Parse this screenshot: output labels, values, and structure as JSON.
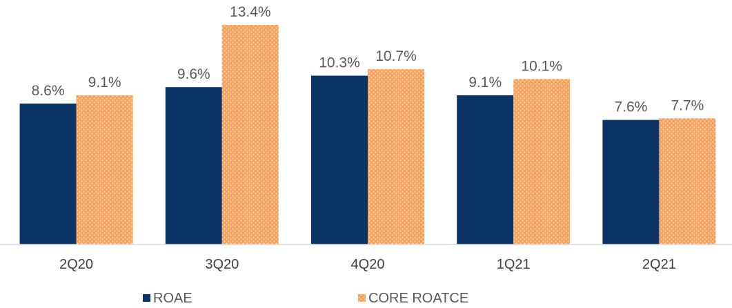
{
  "chart_data": {
    "type": "bar",
    "categories": [
      "2Q20",
      "3Q20",
      "4Q20",
      "1Q21",
      "2Q21"
    ],
    "series": [
      {
        "name": "ROAE",
        "values": [
          8.6,
          9.6,
          10.3,
          9.1,
          7.6
        ],
        "labels": [
          "8.6%",
          "9.6%",
          "10.3%",
          "9.1%",
          "7.6%"
        ],
        "color": "#0b3467",
        "pattern": "solid"
      },
      {
        "name": "CORE ROATCE",
        "values": [
          9.1,
          13.4,
          10.7,
          10.1,
          7.7
        ],
        "labels": [
          "9.1%",
          "13.4%",
          "10.7%",
          "10.1%",
          "7.7%"
        ],
        "color": "#f5a25d",
        "pattern": "dotted"
      }
    ],
    "title": "",
    "xlabel": "",
    "ylabel": "",
    "ylim": [
      0,
      13.4
    ],
    "grid": false,
    "legend": "bottom"
  }
}
